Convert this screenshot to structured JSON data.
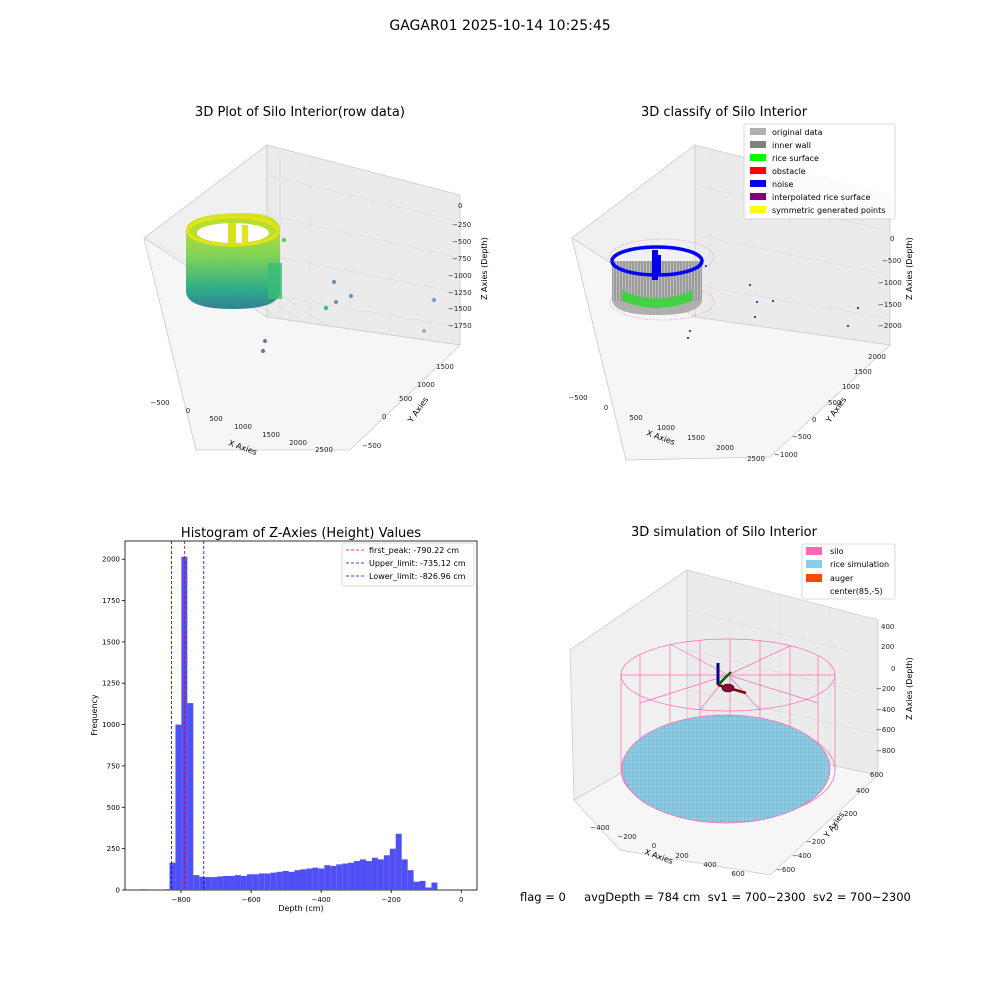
{
  "figure": {
    "title": "GAGAR01 2025-10-14 10:25:45",
    "footer": "flag = 0     avgDepth = 784 cm  sv1 = 700~2300  sv2 = 700~2300"
  },
  "colors": {
    "histogram_bar": "#4f4ff5",
    "first_peak_line": "#ff0000",
    "limit_lines": "#0000cc",
    "silo": "#ff69b4",
    "rice_simulation": "#87ceeb",
    "auger": "#ff4500",
    "inner_wall": "#808080",
    "rice_surface": "#00ff00",
    "noise": "#0000ff",
    "interpolated": "#800080",
    "symmetric": "#ffff00"
  },
  "panels": {
    "raw": {
      "title": "3D Plot of Silo Interior(row data)",
      "x_label": "X Axies",
      "y_label": "Y Axies",
      "z_label": "Z Axies (Depth)",
      "x_ticks": [
        "−500",
        "0",
        "500",
        "1000",
        "1500",
        "2000",
        "2500"
      ],
      "y_ticks": [
        "−500",
        "0",
        "500",
        "1000",
        "1500"
      ],
      "z_ticks": [
        "0",
        "−250",
        "−500",
        "−750",
        "−1000",
        "−1250",
        "−1500",
        "−1750"
      ]
    },
    "classify": {
      "title": "3D classify of Silo Interior",
      "x_label": "X Axies",
      "y_label": "Y Axies",
      "z_label": "Z Axies (Depth)",
      "x_ticks": [
        "−500",
        "0",
        "500",
        "1000",
        "1500",
        "2000",
        "2500"
      ],
      "y_ticks": [
        "−1000",
        "−500",
        "0",
        "500",
        "1000",
        "1500",
        "2000"
      ],
      "z_ticks": [
        "0",
        "−500",
        "−1000",
        "−1500",
        "−2000"
      ],
      "legend": [
        "original data",
        "inner wall",
        "rice surface",
        "obstacle",
        "noise",
        "interpolated rice surface",
        "symmetric generated points"
      ]
    },
    "simulation": {
      "title": "3D simulation of Silo Interior",
      "x_label": "X Axies",
      "y_label": "Y Axies",
      "z_label": "Z Axies (Depth)",
      "x_ticks": [
        "−400",
        "−200",
        "0",
        "200",
        "400",
        "600"
      ],
      "y_ticks": [
        "−600",
        "−400",
        "−200",
        "0",
        "200",
        "400",
        "600"
      ],
      "z_ticks": [
        "400",
        "200",
        "0",
        "−200",
        "−400",
        "−600",
        "−800"
      ],
      "legend": [
        "silo",
        "rice simulation",
        "auger",
        "center(85,-5)"
      ]
    }
  },
  "chart_data": [
    {
      "type": "bar",
      "title": "Histogram of Z-Axies (Height) Values",
      "xlabel": "Depth (cm)",
      "ylabel": "Frequency",
      "xlim": [
        -960,
        45
      ],
      "ylim": [
        0,
        2110
      ],
      "x_ticks": [
        -800,
        -600,
        -400,
        -200,
        0
      ],
      "x_tick_labels": [
        "−800",
        "−600",
        "−400",
        "−200",
        "0"
      ],
      "y_ticks": [
        0,
        250,
        500,
        750,
        1000,
        1250,
        1500,
        1750,
        2000
      ],
      "bin_width": 17,
      "bins": [
        {
          "x": -920,
          "count": 5
        },
        {
          "x": -850,
          "count": 5
        },
        {
          "x": -833,
          "count": 165
        },
        {
          "x": -816,
          "count": 1000
        },
        {
          "x": -799,
          "count": 2015
        },
        {
          "x": -782,
          "count": 1130
        },
        {
          "x": -765,
          "count": 90
        },
        {
          "x": -748,
          "count": 80
        },
        {
          "x": -731,
          "count": 78
        },
        {
          "x": -714,
          "count": 78
        },
        {
          "x": -697,
          "count": 82
        },
        {
          "x": -680,
          "count": 85
        },
        {
          "x": -663,
          "count": 85
        },
        {
          "x": -646,
          "count": 90
        },
        {
          "x": -629,
          "count": 85
        },
        {
          "x": -612,
          "count": 95
        },
        {
          "x": -595,
          "count": 95
        },
        {
          "x": -578,
          "count": 100
        },
        {
          "x": -561,
          "count": 100
        },
        {
          "x": -544,
          "count": 105
        },
        {
          "x": -527,
          "count": 110
        },
        {
          "x": -510,
          "count": 115
        },
        {
          "x": -493,
          "count": 110
        },
        {
          "x": -476,
          "count": 120
        },
        {
          "x": -459,
          "count": 125
        },
        {
          "x": -442,
          "count": 130
        },
        {
          "x": -425,
          "count": 135
        },
        {
          "x": -408,
          "count": 130
        },
        {
          "x": -391,
          "count": 150
        },
        {
          "x": -374,
          "count": 145
        },
        {
          "x": -357,
          "count": 155
        },
        {
          "x": -340,
          "count": 160
        },
        {
          "x": -323,
          "count": 165
        },
        {
          "x": -306,
          "count": 175
        },
        {
          "x": -289,
          "count": 185
        },
        {
          "x": -272,
          "count": 175
        },
        {
          "x": -255,
          "count": 195
        },
        {
          "x": -238,
          "count": 185
        },
        {
          "x": -221,
          "count": 210
        },
        {
          "x": -204,
          "count": 250
        },
        {
          "x": -187,
          "count": 340
        },
        {
          "x": -170,
          "count": 185
        },
        {
          "x": -153,
          "count": 120
        },
        {
          "x": -136,
          "count": 50
        },
        {
          "x": -119,
          "count": 55
        },
        {
          "x": -102,
          "count": 15
        },
        {
          "x": -85,
          "count": 45
        }
      ],
      "lines": [
        {
          "label": "first_peak: -790.22 cm",
          "x": -790.22,
          "color": "#ff0000"
        },
        {
          "label": "Upper_limit: -735.12 cm",
          "x": -735.12,
          "color": "#0000cc"
        },
        {
          "label": "Lower_limit: -826.96 cm",
          "x": -826.96,
          "color": "#0000cc"
        }
      ],
      "legend_position": "top-right"
    }
  ]
}
